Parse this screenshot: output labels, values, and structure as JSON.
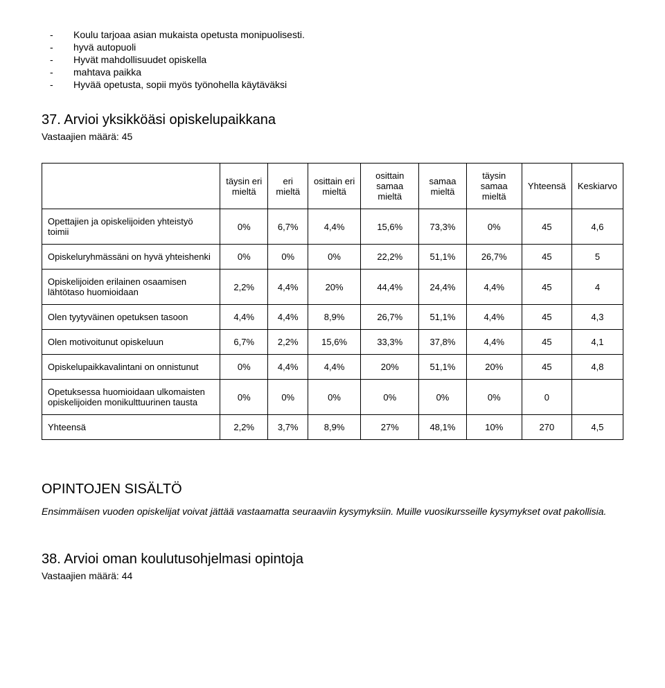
{
  "bullets": [
    "Koulu tarjoaa asian mukaista opetusta monipuolisesti.",
    "hyvä autopuoli",
    "Hyvät mahdollisuudet opiskella",
    "mahtava paikka",
    "Hyvää opetusta, sopii myös työnohella käytäväksi"
  ],
  "section37": {
    "title": "37. Arvioi yksikköäsi opiskelupaikkana",
    "subcount": "Vastaajien määrä: 45"
  },
  "table": {
    "headers": [
      "",
      "täysin eri mieltä",
      "eri mieltä",
      "osittain eri mieltä",
      "osittain samaa mieltä",
      "samaa mieltä",
      "täysin samaa mieltä",
      "Yhteensä",
      "Keskiarvo"
    ],
    "rows": [
      [
        "Opettajien ja opiskelijoiden yhteistyö toimii",
        "0%",
        "6,7%",
        "4,4%",
        "15,6%",
        "73,3%",
        "0%",
        "45",
        "4,6"
      ],
      [
        "Opiskeluryhmässäni on hyvä yhteishenki",
        "0%",
        "0%",
        "0%",
        "22,2%",
        "51,1%",
        "26,7%",
        "45",
        "5"
      ],
      [
        "Opiskelijoiden erilainen osaamisen lähtötaso huomioidaan",
        "2,2%",
        "4,4%",
        "20%",
        "44,4%",
        "24,4%",
        "4,4%",
        "45",
        "4"
      ],
      [
        "Olen tyytyväinen opetuksen tasoon",
        "4,4%",
        "4,4%",
        "8,9%",
        "26,7%",
        "51,1%",
        "4,4%",
        "45",
        "4,3"
      ],
      [
        "Olen motivoitunut opiskeluun",
        "6,7%",
        "2,2%",
        "15,6%",
        "33,3%",
        "37,8%",
        "4,4%",
        "45",
        "4,1"
      ],
      [
        "Opiskelupaikkavalintani on onnistunut",
        "0%",
        "4,4%",
        "4,4%",
        "20%",
        "51,1%",
        "20%",
        "45",
        "4,8"
      ],
      [
        "Opetuksessa huomioidaan ulkomaisten opiskelijoiden monikulttuurinen tausta",
        "0%",
        "0%",
        "0%",
        "0%",
        "0%",
        "0%",
        "0",
        ""
      ],
      [
        "Yhteensä",
        "2,2%",
        "3,7%",
        "8,9%",
        "27%",
        "48,1%",
        "10%",
        "270",
        "4,5"
      ]
    ]
  },
  "studies": {
    "heading": "OPINTOJEN SISÄLTÖ",
    "italic": "Ensimmäisen vuoden opiskelijat voivat jättää vastaamatta seuraaviin kysymyksiin. Muille vuosikursseille kysymykset ovat pakollisia."
  },
  "section38": {
    "title": "38. Arvioi oman koulutusohjelmasi opintoja",
    "subcount": "Vastaajien määrä: 44"
  }
}
